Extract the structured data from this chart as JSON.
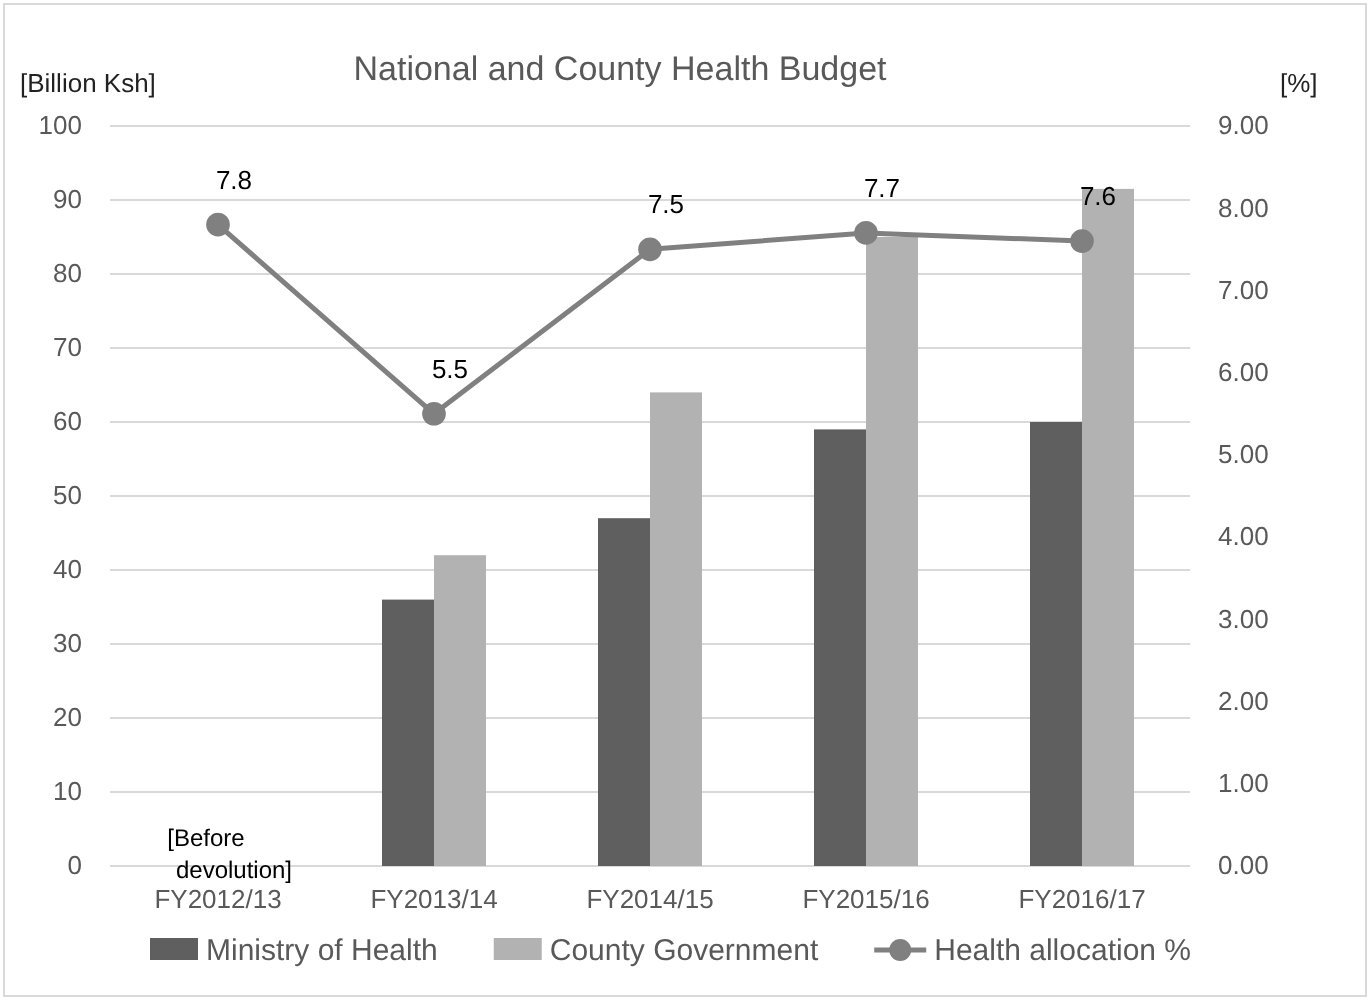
{
  "chart_data": {
    "type": "bar",
    "title": "National and County Health Budget",
    "ylabel": "[Billion Ksh]",
    "y2label": "[%]",
    "categories": [
      "FY2012/13",
      "FY2013/14",
      "FY2014/15",
      "FY2015/16",
      "FY2016/17"
    ],
    "series": [
      {
        "name": "Ministry of Health",
        "color": "#5f5f5f",
        "values": [
          null,
          36,
          47,
          59,
          60
        ]
      },
      {
        "name": "County Government",
        "color": "#b2b2b2",
        "values": [
          null,
          42,
          64,
          85,
          91.5
        ]
      },
      {
        "name": "Health allocation %",
        "type": "line",
        "axis": "y2",
        "color": "#808080",
        "marker": "circle",
        "data_labels": true,
        "values": [
          7.8,
          5.5,
          7.5,
          7.7,
          7.6
        ]
      }
    ],
    "ylim": [
      0,
      100
    ],
    "yticks": [
      0,
      10,
      20,
      30,
      40,
      50,
      60,
      70,
      80,
      90,
      100
    ],
    "y2lim": [
      0,
      9
    ],
    "y2ticks": [
      {
        "value": 0,
        "label": "0.00"
      },
      {
        "value": 1,
        "label": "1.00"
      },
      {
        "value": 2,
        "label": "2.00"
      },
      {
        "value": 3,
        "label": "3.00"
      },
      {
        "value": 4,
        "label": "4.00"
      },
      {
        "value": 5,
        "label": "5.00"
      },
      {
        "value": 6,
        "label": "6.00"
      },
      {
        "value": 7,
        "label": "7.00"
      },
      {
        "value": 8,
        "label": "8.00"
      },
      {
        "value": 9,
        "label": "9.00"
      }
    ],
    "annotations": [
      "[Before devolution]"
    ],
    "grid": "y",
    "legend": "bottom"
  }
}
